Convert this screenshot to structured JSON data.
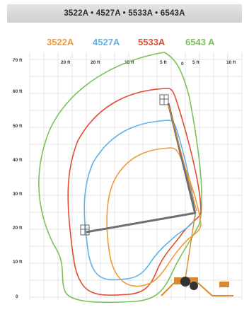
{
  "header": {
    "title": "3522A • 4527A • 5533A • 6543A"
  },
  "legend": [
    {
      "label": "3522A",
      "color": "#f29a3a"
    },
    {
      "label": "4527A",
      "color": "#5fb3e8"
    },
    {
      "label": "5533A",
      "color": "#e24b33"
    },
    {
      "label": "6543 A",
      "color": "#79c25a"
    }
  ],
  "y_axis": {
    "unit": "ft",
    "ticks": [
      {
        "label": "70 ft",
        "value": 70
      },
      {
        "label": "60 ft",
        "value": 60
      },
      {
        "label": "50 ft",
        "value": 50
      },
      {
        "label": "40 ft",
        "value": 40
      },
      {
        "label": "30 ft",
        "value": 30
      },
      {
        "label": "20 ft",
        "value": 20
      },
      {
        "label": "10 ft",
        "value": 10
      },
      {
        "label": "0",
        "value": 0
      }
    ]
  },
  "x_axis": {
    "ticks": [
      {
        "label": "20 ft",
        "value": -20
      },
      {
        "label": "20 ft",
        "value": -15
      },
      {
        "label": "15 ft",
        "value": -10
      },
      {
        "label": "5 ft",
        "value": -2
      },
      {
        "label": "5 ft",
        "value": 3
      },
      {
        "label": "10 ft",
        "value": 15
      }
    ],
    "center_mark": "0"
  },
  "colors": {
    "grid": "#d8d8d8",
    "boom": "#7a7a7a",
    "outline_3522": "#f29a3a",
    "outline_4527": "#5fb3e8",
    "outline_5533": "#e24b33",
    "outline_6543": "#79c25a",
    "machine": "#d98a2e"
  }
}
